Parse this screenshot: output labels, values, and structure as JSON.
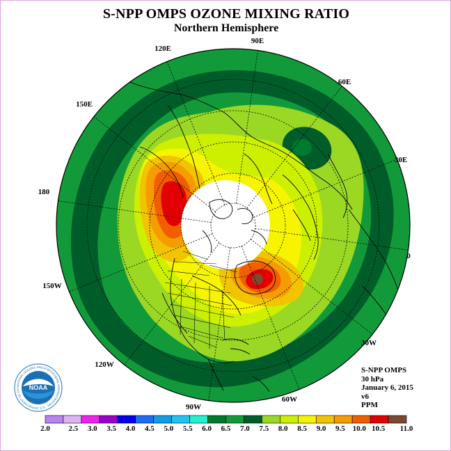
{
  "header": {
    "title": "S-NPP OMPS OZONE MIXING RATIO",
    "subtitle": "Northern Hemisphere"
  },
  "map": {
    "projection": "north polar stereographic",
    "longitude_labels": [
      {
        "name": "lon-label-90e",
        "text": "90E"
      },
      {
        "name": "lon-label-60e",
        "text": "60E"
      },
      {
        "name": "lon-label-30e",
        "text": "30E"
      },
      {
        "name": "lon-label-0",
        "text": "0"
      },
      {
        "name": "lon-label-30w",
        "text": "30W"
      },
      {
        "name": "lon-label-60w",
        "text": "60W"
      },
      {
        "name": "lon-label-90w",
        "text": "90W"
      },
      {
        "name": "lon-label-120w",
        "text": "120W"
      },
      {
        "name": "lon-label-150w",
        "text": "150W"
      },
      {
        "name": "lon-label-180",
        "text": "180"
      },
      {
        "name": "lon-label-150e",
        "text": "150E"
      },
      {
        "name": "lon-label-120e",
        "text": "120E"
      }
    ],
    "polar_no_data": true
  },
  "info": {
    "instrument": "S-NPP OMPS",
    "level": "30 hPa",
    "date": "January 6, 2015",
    "version": "v6",
    "units": "PPM"
  },
  "logo": {
    "name": "NOAA",
    "ring_text": "NATIONAL OCEANIC AND ATMOSPHERIC ADMINISTRATION · U.S. DEPARTMENT OF COMMERCE"
  },
  "colorbar": {
    "labels": [
      "2.0",
      "2.5",
      "3.0",
      "3.5",
      "4.0",
      "4.5",
      "5.0",
      "5.5",
      "6.0",
      "6.5",
      "7.0",
      "7.5",
      "8.0",
      "8.5",
      "9.0",
      "9.5",
      "10.0",
      "10.5",
      "11.0"
    ],
    "colors": [
      "#b784f0",
      "#dcb4f6",
      "#ee22ee",
      "#9900cc",
      "#0000ee",
      "#1e6cf5",
      "#109de6",
      "#22c3f0",
      "#22f0d0",
      "#007a2e",
      "#129a3a",
      "#005d2a",
      "#9ad824",
      "#ccf000",
      "#f6f400",
      "#f2c400",
      "#f59c00",
      "#f05e00",
      "#e20000",
      "#7a4a33"
    ]
  }
}
